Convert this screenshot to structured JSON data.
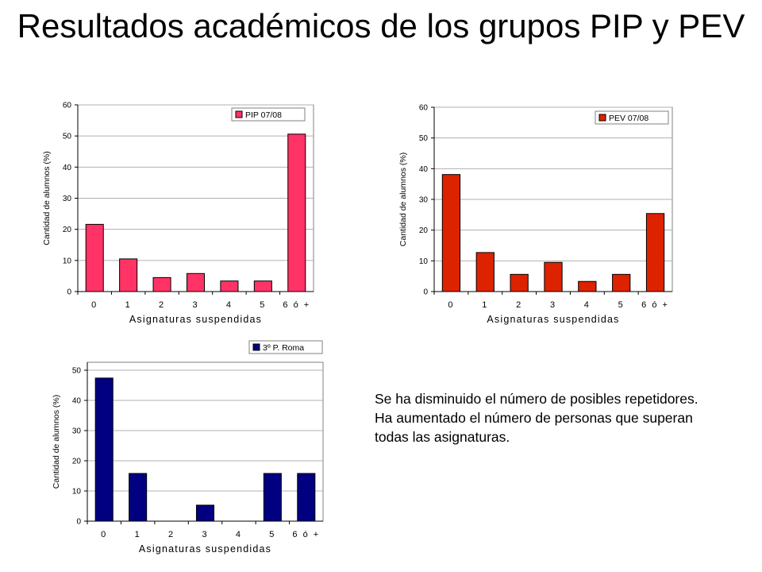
{
  "title": "Resultados académicos de los grupos PIP y PEV",
  "note": {
    "line1": "Se ha disminuido el número de posibles repetidores.",
    "line2": "Ha aumentado el número de personas que superan todas las asignaturas."
  },
  "chart_data": [
    {
      "type": "bar",
      "categories": [
        "0",
        "1",
        "2",
        "3",
        "4",
        "5",
        "6 ó +"
      ],
      "series": [
        {
          "name": "PIP 07/08",
          "values": [
            21.6,
            10.5,
            4.5,
            5.8,
            3.4,
            3.4,
            50.6
          ],
          "color": "#ff3366"
        }
      ],
      "xlabel": "Asignaturas suspendidas",
      "ylabel": "Cantidad de alumnos (%)",
      "ylim": [
        0,
        60
      ],
      "yticks": [
        0,
        10,
        20,
        30,
        40,
        50,
        60
      ],
      "grid": true,
      "legend": "top-right"
    },
    {
      "type": "bar",
      "categories": [
        "0",
        "1",
        "2",
        "3",
        "4",
        "5",
        "6 ó +"
      ],
      "series": [
        {
          "name": "PEV 07/08",
          "values": [
            38.1,
            12.7,
            5.6,
            9.5,
            3.3,
            5.6,
            25.4
          ],
          "color": "#dd2200"
        }
      ],
      "xlabel": "Asignaturas suspendidas",
      "ylabel": "Cantidad de alumnos (%)",
      "ylim": [
        0,
        60
      ],
      "yticks": [
        0,
        10,
        20,
        30,
        40,
        50,
        60
      ],
      "grid": true,
      "legend": "top-right"
    },
    {
      "type": "bar",
      "categories": [
        "0",
        "1",
        "2",
        "3",
        "4",
        "5",
        "6 ó +"
      ],
      "series": [
        {
          "name": "3º P. Roma",
          "values": [
            47.4,
            15.8,
            0,
            5.3,
            0,
            15.8,
            15.8
          ],
          "color": "#000080"
        }
      ],
      "xlabel": "Asignaturas suspendidas",
      "ylabel": "Cantidad de alumnos (%)",
      "ylim": [
        0,
        60
      ],
      "yticks": [
        0,
        10,
        20,
        30,
        40,
        50
      ],
      "grid": true,
      "legend": "top-right"
    }
  ]
}
